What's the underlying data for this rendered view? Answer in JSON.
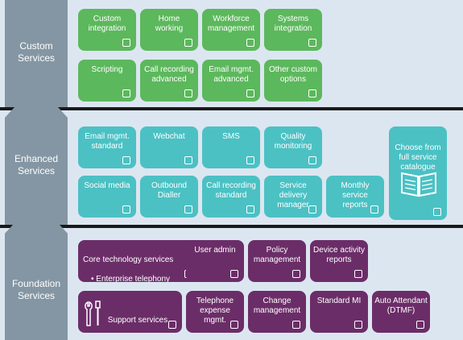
{
  "tiers": {
    "custom": "Custom\nServices",
    "enhanced": "Enhanced\nServices",
    "foundation": "Foundation\nServices"
  },
  "custom": {
    "custom_integration": "Custom\nintegration",
    "home_working": "Home\nworking",
    "workforce_management": "Workforce\nmanagement",
    "systems_integration": "Systems\nintegration",
    "scripting": "Scripting",
    "call_recording_advanced": "Call recording\nadvanced",
    "email_mgmt_advanced": "Email mgmt.\nadvanced",
    "other_custom_options": "Other custom\noptions"
  },
  "enhanced": {
    "email_mgmt_standard": "Email mgmt.\nstandard",
    "webchat": "Webchat",
    "sms": "SMS",
    "quality_monitoring": "Quality\nmonitoring",
    "social_media": "Social media",
    "outbound_dialler": "Outbound\nDialler",
    "call_recording_standard": "Call recording\nstandard",
    "service_delivery_manager": "Service delivery\nmanager",
    "monthly_service_reports": "Monthly service\nreports",
    "choose_catalogue": "Choose from\nfull service\ncatalogue"
  },
  "foundation": {
    "core_title": "Core  technology services",
    "core_bullet": "•    Enterprise telephony",
    "user_admin": "User admin",
    "policy_management": "Policy\nmanagement",
    "device_activity_reports": "Device activity\nreports",
    "support_services": "Support services",
    "telephone_expense_mgmt": "Telephone\nexpense mgmt.",
    "change_management": "Change\nmanagement",
    "standard_mi": "Standard MI",
    "auto_attendant": "Auto Attendant\n(DTMF)"
  },
  "colors": {
    "custom_tile": "#5cb85c",
    "enhanced_tile": "#4bc1c4",
    "foundation_tile": "#6b2d68",
    "arrow": "#8496a3",
    "band": "#dce6f1"
  }
}
